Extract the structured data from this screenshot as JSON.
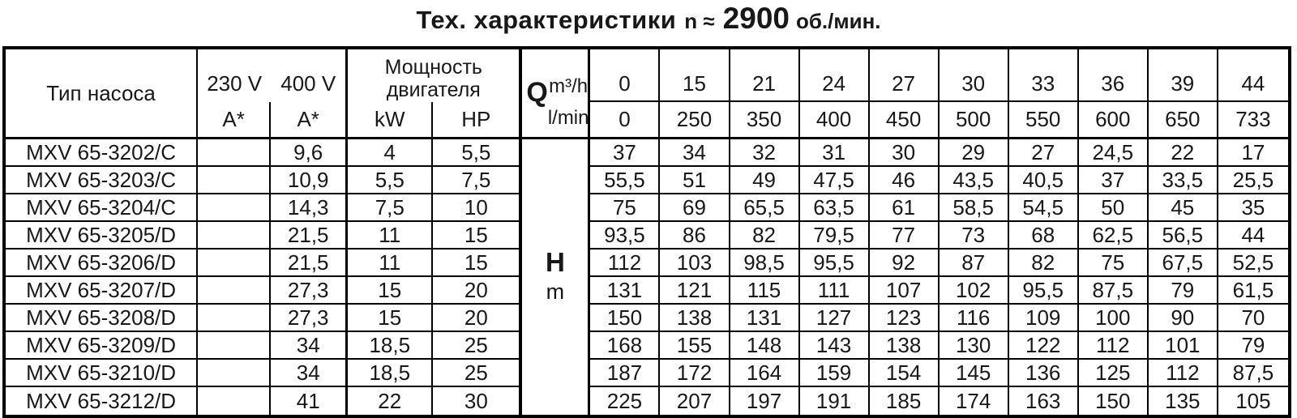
{
  "title": {
    "main": "Тех. характеристики",
    "n_part": "n ≈",
    "rpm_value": "2900",
    "rpm_units": "об./мин."
  },
  "table": {
    "headers": {
      "pump_type": "Тип насоса",
      "v230": "230 V",
      "v400": "400 V",
      "amp_230": "A*",
      "amp_400": "A*",
      "power_title": "Мощность двигателя",
      "kw": "kW",
      "hp": "HP",
      "q_label": "Q",
      "q_unit_top": "m³/h",
      "q_unit_bottom": "l/min",
      "h_label": "H",
      "h_unit": "m"
    },
    "flow_m3h": [
      "0",
      "15",
      "21",
      "24",
      "27",
      "30",
      "33",
      "36",
      "39",
      "44"
    ],
    "flow_lmin": [
      "0",
      "250",
      "350",
      "400",
      "450",
      "500",
      "550",
      "600",
      "650",
      "733"
    ],
    "rows": [
      {
        "type": "MXV 65-3202/C",
        "a230": "",
        "a400": "9,6",
        "kw": "4",
        "hp": "5,5",
        "head": [
          "37",
          "34",
          "32",
          "31",
          "30",
          "29",
          "27",
          "24,5",
          "22",
          "17"
        ]
      },
      {
        "type": "MXV 65-3203/C",
        "a230": "",
        "a400": "10,9",
        "kw": "5,5",
        "hp": "7,5",
        "head": [
          "55,5",
          "51",
          "49",
          "47,5",
          "46",
          "43,5",
          "40,5",
          "37",
          "33,5",
          "25,5"
        ]
      },
      {
        "type": "MXV 65-3204/C",
        "a230": "",
        "a400": "14,3",
        "kw": "7,5",
        "hp": "10",
        "head": [
          "75",
          "69",
          "65,5",
          "63,5",
          "61",
          "58,5",
          "54,5",
          "50",
          "45",
          "35"
        ]
      },
      {
        "type": "MXV 65-3205/D",
        "a230": "",
        "a400": "21,5",
        "kw": "11",
        "hp": "15",
        "head": [
          "93,5",
          "86",
          "82",
          "79,5",
          "77",
          "73",
          "68",
          "62,5",
          "56,5",
          "44"
        ]
      },
      {
        "type": "MXV 65-3206/D",
        "a230": "",
        "a400": "21,5",
        "kw": "11",
        "hp": "15",
        "head": [
          "112",
          "103",
          "98,5",
          "95,5",
          "92",
          "87",
          "82",
          "75",
          "67,5",
          "52,5"
        ]
      },
      {
        "type": "MXV 65-3207/D",
        "a230": "",
        "a400": "27,3",
        "kw": "15",
        "hp": "20",
        "head": [
          "131",
          "121",
          "115",
          "111",
          "107",
          "102",
          "95,5",
          "87,5",
          "79",
          "61,5"
        ]
      },
      {
        "type": "MXV 65-3208/D",
        "a230": "",
        "a400": "27,3",
        "kw": "15",
        "hp": "20",
        "head": [
          "150",
          "138",
          "131",
          "127",
          "123",
          "116",
          "109",
          "100",
          "90",
          "70"
        ]
      },
      {
        "type": "MXV 65-3209/D",
        "a230": "",
        "a400": "34",
        "kw": "18,5",
        "hp": "25",
        "head": [
          "168",
          "155",
          "148",
          "143",
          "138",
          "130",
          "122",
          "112",
          "101",
          "79"
        ]
      },
      {
        "type": "MXV 65-3210/D",
        "a230": "",
        "a400": "34",
        "kw": "18,5",
        "hp": "25",
        "head": [
          "187",
          "172",
          "164",
          "159",
          "154",
          "145",
          "136",
          "125",
          "112",
          "87,5"
        ]
      },
      {
        "type": "MXV 65-3212/D",
        "a230": "",
        "a400": "41",
        "kw": "22",
        "hp": "30",
        "head": [
          "225",
          "207",
          "197",
          "191",
          "185",
          "174",
          "163",
          "150",
          "135",
          "105"
        ]
      }
    ]
  }
}
